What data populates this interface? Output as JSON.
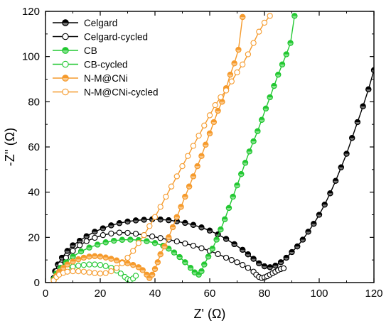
{
  "chart_data": {
    "type": "scatter",
    "xlabel": "Z' (Ω)",
    "ylabel": "-Z'' (Ω)",
    "xlim": [
      0,
      120
    ],
    "ylim": [
      0,
      120
    ],
    "xticks": [
      0,
      20,
      40,
      60,
      80,
      100,
      120
    ],
    "yticks": [
      0,
      20,
      40,
      60,
      80,
      100,
      120
    ],
    "grid": false,
    "legend_position": "top-left",
    "series": [
      {
        "name": "Celgard",
        "color": "#000000",
        "marker": "half-filled-circle",
        "points": [
          [
            3,
            2
          ],
          [
            3.5,
            5
          ],
          [
            4.5,
            8
          ],
          [
            6,
            11
          ],
          [
            8,
            14
          ],
          [
            10,
            16.5
          ],
          [
            12.5,
            18.5
          ],
          [
            15,
            20.5
          ],
          [
            18,
            22.5
          ],
          [
            21,
            24
          ],
          [
            24,
            25.3
          ],
          [
            27,
            26.3
          ],
          [
            30,
            27
          ],
          [
            33,
            27.5
          ],
          [
            36,
            27.8
          ],
          [
            39,
            28
          ],
          [
            42,
            27.9
          ],
          [
            45,
            27.6
          ],
          [
            48,
            27.1
          ],
          [
            51,
            26.4
          ],
          [
            54,
            25.5
          ],
          [
            57,
            24.4
          ],
          [
            60,
            23
          ],
          [
            63,
            21.3
          ],
          [
            66,
            19.3
          ],
          [
            69,
            17
          ],
          [
            72,
            14.5
          ],
          [
            74,
            12.5
          ],
          [
            76,
            10.5
          ],
          [
            78,
            8.5
          ],
          [
            80,
            7.2
          ],
          [
            82,
            6.8
          ],
          [
            84,
            7.5
          ],
          [
            86,
            9
          ],
          [
            88,
            11
          ],
          [
            90,
            13.5
          ],
          [
            92,
            16
          ],
          [
            94,
            19
          ],
          [
            96,
            22.5
          ],
          [
            98,
            26
          ],
          [
            100,
            30
          ],
          [
            102,
            34.5
          ],
          [
            104,
            39.5
          ],
          [
            106,
            45
          ],
          [
            108,
            51
          ],
          [
            110,
            57
          ],
          [
            112,
            64
          ],
          [
            114,
            71
          ],
          [
            116,
            78
          ],
          [
            118,
            85.5
          ],
          [
            120,
            94
          ]
        ]
      },
      {
        "name": "Celgard-cycled",
        "color": "#000000",
        "marker": "open-circle",
        "points": [
          [
            3,
            2
          ],
          [
            4,
            5
          ],
          [
            5.5,
            8
          ],
          [
            7.5,
            11
          ],
          [
            10,
            14
          ],
          [
            12.5,
            16.5
          ],
          [
            15,
            18.3
          ],
          [
            18,
            19.8
          ],
          [
            21,
            21
          ],
          [
            24,
            21.7
          ],
          [
            27,
            22.1
          ],
          [
            30,
            22
          ],
          [
            33,
            21.6
          ],
          [
            36,
            21
          ],
          [
            39,
            20.4
          ],
          [
            42,
            19.7
          ],
          [
            45,
            19
          ],
          [
            48,
            18.2
          ],
          [
            51,
            17.3
          ],
          [
            54,
            16.3
          ],
          [
            57,
            15.2
          ],
          [
            60,
            14
          ],
          [
            63,
            12.6
          ],
          [
            66,
            11
          ],
          [
            68,
            10
          ],
          [
            70,
            9
          ],
          [
            72,
            7.8
          ],
          [
            74,
            6.5
          ],
          [
            76,
            4.8
          ],
          [
            77,
            3.5
          ],
          [
            78,
            2.5
          ],
          [
            79,
            2
          ],
          [
            80,
            2.3
          ],
          [
            81,
            2.8
          ],
          [
            82,
            3.5
          ],
          [
            83,
            4.2
          ],
          [
            84,
            4.8
          ],
          [
            85,
            5.5
          ],
          [
            86,
            6
          ],
          [
            87,
            6.3
          ]
        ]
      },
      {
        "name": "CB",
        "color": "#22c832",
        "marker": "half-filled-circle",
        "points": [
          [
            3,
            1.5
          ],
          [
            4,
            4
          ],
          [
            5.5,
            6.5
          ],
          [
            7.5,
            9
          ],
          [
            10,
            11.5
          ],
          [
            13,
            13.8
          ],
          [
            16,
            15.5
          ],
          [
            19,
            16.8
          ],
          [
            22,
            17.8
          ],
          [
            25,
            18.5
          ],
          [
            28,
            18.9
          ],
          [
            31,
            19
          ],
          [
            34,
            18.8
          ],
          [
            37,
            18.3
          ],
          [
            40,
            17.5
          ],
          [
            43,
            16.3
          ],
          [
            45,
            15
          ],
          [
            47,
            13.3
          ],
          [
            49,
            11.3
          ],
          [
            51,
            9
          ],
          [
            53,
            6.5
          ],
          [
            54.5,
            4.5
          ],
          [
            56,
            3.5
          ],
          [
            57,
            5
          ],
          [
            58,
            8
          ],
          [
            59.5,
            11.5
          ],
          [
            61,
            15
          ],
          [
            62.5,
            19
          ],
          [
            64,
            23.5
          ],
          [
            65.5,
            28
          ],
          [
            67,
            33
          ],
          [
            68.5,
            38
          ],
          [
            70,
            43
          ],
          [
            71.5,
            48
          ],
          [
            73,
            53
          ],
          [
            74.5,
            58
          ],
          [
            76,
            62.5
          ],
          [
            77.5,
            67
          ],
          [
            79,
            72
          ],
          [
            80.5,
            77
          ],
          [
            82,
            82
          ],
          [
            83.5,
            87
          ],
          [
            85,
            92
          ],
          [
            86.5,
            96.5
          ],
          [
            88,
            101
          ],
          [
            89.5,
            106
          ],
          [
            91,
            118
          ]
        ]
      },
      {
        "name": "CB-cycled",
        "color": "#22c832",
        "marker": "open-circle",
        "points": [
          [
            3,
            1
          ],
          [
            4,
            2.5
          ],
          [
            5,
            4
          ],
          [
            6.5,
            5.3
          ],
          [
            8,
            6.3
          ],
          [
            10,
            7
          ],
          [
            12,
            7.5
          ],
          [
            14,
            7.8
          ],
          [
            16,
            8
          ],
          [
            18,
            8
          ],
          [
            20,
            7.8
          ],
          [
            22,
            7.3
          ],
          [
            24,
            6.5
          ],
          [
            26,
            5.3
          ],
          [
            27.5,
            4
          ],
          [
            29,
            2.5
          ],
          [
            30,
            1.5
          ],
          [
            31,
            1.2
          ],
          [
            32,
            1.8
          ],
          [
            33,
            3
          ]
        ]
      },
      {
        "name": "N-M@CNi",
        "color": "#f59a2c",
        "marker": "half-filled-circle",
        "points": [
          [
            3,
            1
          ],
          [
            4,
            3
          ],
          [
            5,
            4.8
          ],
          [
            6.5,
            6.5
          ],
          [
            8,
            8
          ],
          [
            10,
            9.3
          ],
          [
            12,
            10.3
          ],
          [
            14,
            11
          ],
          [
            16,
            11.5
          ],
          [
            18,
            11.7
          ],
          [
            20,
            11.5
          ],
          [
            22,
            11.1
          ],
          [
            24,
            10.5
          ],
          [
            26,
            9.8
          ],
          [
            28,
            9
          ],
          [
            30,
            8.5
          ],
          [
            32,
            7.8
          ],
          [
            34,
            6.8
          ],
          [
            35.5,
            5.5
          ],
          [
            37,
            3.5
          ],
          [
            38,
            2
          ],
          [
            39,
            3.5
          ],
          [
            40,
            6
          ],
          [
            41,
            9
          ],
          [
            42,
            12.5
          ],
          [
            43.5,
            16
          ],
          [
            45,
            20
          ],
          [
            46.5,
            24.5
          ],
          [
            48,
            29
          ],
          [
            49.5,
            33.5
          ],
          [
            51,
            38
          ],
          [
            52.5,
            42.5
          ],
          [
            54,
            47
          ],
          [
            55.5,
            51.5
          ],
          [
            57,
            56
          ],
          [
            58.5,
            61
          ],
          [
            60,
            66
          ],
          [
            61.5,
            71
          ],
          [
            63,
            76
          ],
          [
            64.5,
            80
          ],
          [
            66,
            86
          ],
          [
            67.5,
            92
          ],
          [
            69,
            97
          ],
          [
            70.5,
            103
          ],
          [
            72,
            117.5
          ]
        ]
      },
      {
        "name": "N-M@CNi-cycled",
        "color": "#f59a2c",
        "marker": "open-circle",
        "points": [
          [
            3,
            1
          ],
          [
            4,
            2.5
          ],
          [
            5,
            3.5
          ],
          [
            6.5,
            4.3
          ],
          [
            8,
            4.8
          ],
          [
            10,
            5
          ],
          [
            12,
            5
          ],
          [
            14,
            4.8
          ],
          [
            16,
            4.5
          ],
          [
            18,
            4.2
          ],
          [
            20,
            4
          ],
          [
            22,
            4.2
          ],
          [
            24,
            5
          ],
          [
            26,
            6.5
          ],
          [
            28,
            8.5
          ],
          [
            30,
            11
          ],
          [
            32,
            14
          ],
          [
            34,
            17.5
          ],
          [
            36,
            21
          ],
          [
            38,
            25
          ],
          [
            40,
            29
          ],
          [
            42,
            33.5
          ],
          [
            44,
            38
          ],
          [
            46,
            42.5
          ],
          [
            48,
            47
          ],
          [
            50,
            51.5
          ],
          [
            52,
            56
          ],
          [
            54,
            60.5
          ],
          [
            56,
            65
          ],
          [
            58,
            69.5
          ],
          [
            60,
            74
          ],
          [
            62,
            78.5
          ],
          [
            64,
            82
          ],
          [
            66,
            85
          ],
          [
            68,
            89
          ],
          [
            70,
            93
          ],
          [
            72,
            96.5
          ],
          [
            74,
            101
          ],
          [
            76,
            106
          ],
          [
            78,
            111
          ],
          [
            80,
            115
          ],
          [
            82,
            118
          ]
        ]
      }
    ]
  }
}
